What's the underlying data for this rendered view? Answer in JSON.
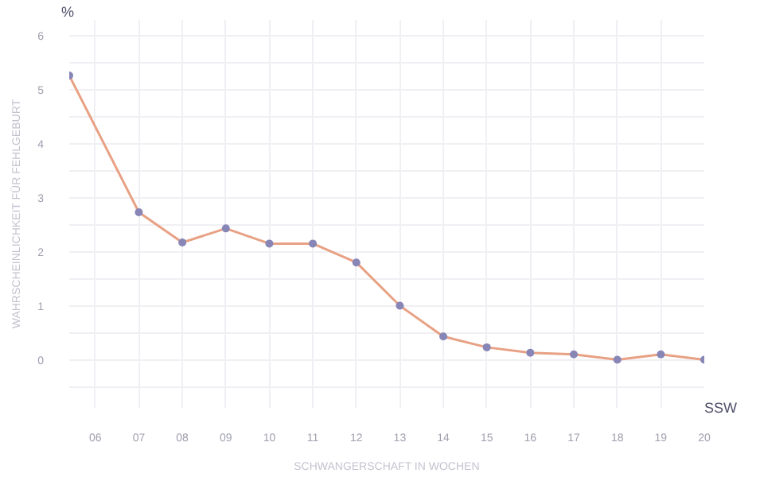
{
  "chart_data": {
    "type": "line",
    "xlabel": "SCHWANGERSCHAFT IN WOCHEN",
    "ylabel": "WAHRSCHEINLICHKEIT FÜR FEHLGEBURT",
    "annotations": [
      "%",
      "SSW"
    ],
    "x": [
      5.4,
      7,
      8,
      9,
      10,
      11,
      12,
      13,
      14,
      15,
      16,
      17,
      18,
      19,
      20
    ],
    "series": [
      {
        "color": "#e8a184",
        "values": [
          5.27,
          2.74,
          2.18,
          2.44,
          2.16,
          2.16,
          1.81,
          1.01,
          0.44,
          0.24,
          0.14,
          0.11,
          0.01,
          0.11,
          0.01
        ]
      }
    ],
    "xlim": [
      5.4,
      20
    ],
    "xticks": [
      {
        "value": 6,
        "label": "06"
      },
      {
        "value": 7,
        "label": "07"
      },
      {
        "value": 8,
        "label": "08"
      },
      {
        "value": 9,
        "label": "09"
      },
      {
        "value": 10,
        "label": "10"
      },
      {
        "value": 11,
        "label": "11"
      },
      {
        "value": 12,
        "label": "12"
      },
      13,
      14,
      15,
      16,
      17,
      18,
      19,
      20
    ],
    "ylim": [
      -0.88,
      6.3
    ],
    "yticks": [
      {
        "value": -0.5,
        "label": null
      },
      0,
      {
        "value": 0.5,
        "label": null
      },
      1,
      {
        "value": 1.5,
        "label": null
      },
      2,
      {
        "value": 2.5,
        "label": null
      },
      3,
      {
        "value": 3.5,
        "label": null
      },
      4,
      {
        "value": 4.5,
        "label": null
      },
      5,
      {
        "value": 5.5,
        "label": null
      },
      6
    ],
    "grid": true,
    "marker": "circle",
    "line_style": "solid"
  }
}
